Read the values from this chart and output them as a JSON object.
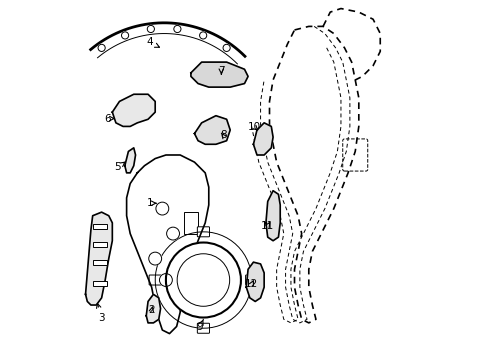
{
  "bg_color": "#ffffff",
  "line_color": "#000000",
  "figsize": [
    4.89,
    3.6
  ],
  "dpi": 100
}
